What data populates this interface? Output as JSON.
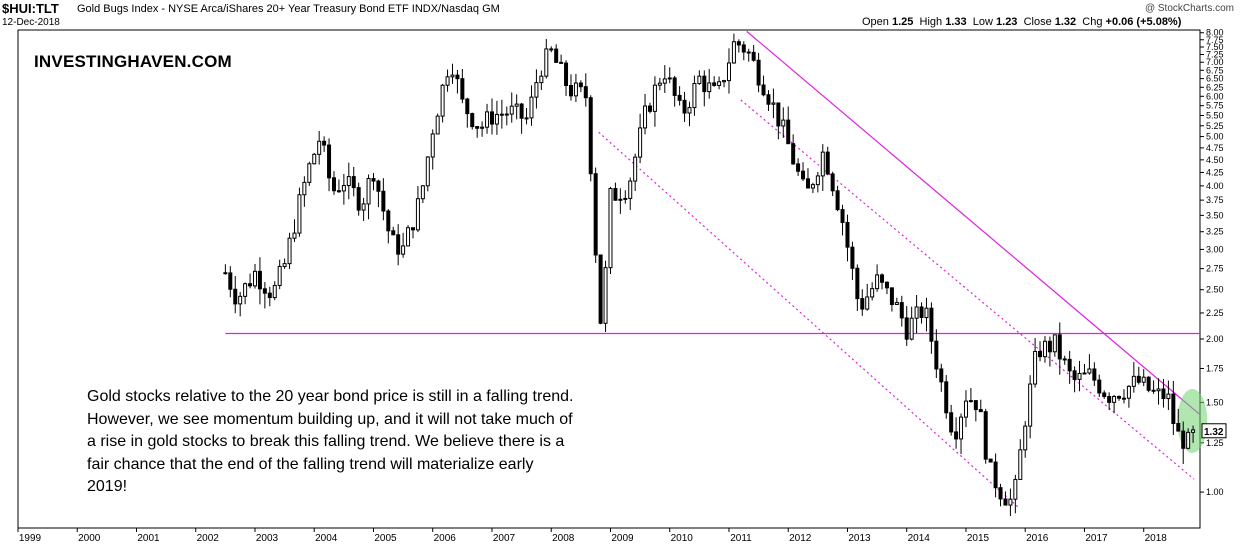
{
  "header": {
    "symbol": "$HUI:TLT",
    "description": "Gold Bugs Index - NYSE Arca/iShares 20+ Year Treasury Bond ETF  INDX/Nasdaq GM",
    "date": "12-Dec-2018",
    "credit": "@ StockCharts.com",
    "open_label": "Open",
    "open": "1.25",
    "high_label": "High",
    "high": "1.33",
    "low_label": "Low",
    "low": "1.23",
    "close_label": "Close",
    "close": "1.32",
    "chg_label": "Chg",
    "chg": "+0.06 (+5.08%)"
  },
  "watermark": "INVESTINGHAVEN.COM",
  "annotation": "Gold stocks relative to the 20 year bond price is still in a falling trend. However, we see momentum building up, and it will not take much of a rise in gold stocks to break this falling trend. We believe there is a fair chance that the end of the falling trend will materialize early 2019!",
  "colors": {
    "trendline": "#e020e0",
    "highlight": "#6fd36f",
    "up": "#ffffff",
    "down": "#000000"
  },
  "chart_data": {
    "type": "candlestick",
    "y_scale": "log",
    "ylim": [
      0.85,
      8.1
    ],
    "xlim": [
      1999.0,
      2018.95
    ],
    "x_ticks": [
      "1999",
      "2000",
      "2001",
      "2002",
      "2003",
      "2004",
      "2005",
      "2006",
      "2007",
      "2008",
      "2009",
      "2010",
      "2011",
      "2012",
      "2013",
      "2014",
      "2015",
      "2016",
      "2017",
      "2018"
    ],
    "y_ticks": [
      "8.00",
      "7.75",
      "7.50",
      "7.25",
      "7.00",
      "6.75",
      "6.50",
      "6.25",
      "6.00",
      "5.75",
      "5.50",
      "5.25",
      "5.00",
      "4.75",
      "4.50",
      "4.25",
      "4.00",
      "3.75",
      "3.50",
      "3.25",
      "3.00",
      "2.75",
      "2.50",
      "2.25",
      "2.00",
      "1.75",
      "1.50",
      "1.25",
      "1.00"
    ],
    "last_value": "1.32",
    "anchors": [
      [
        2002.5,
        2.7
      ],
      [
        2002.7,
        2.4
      ],
      [
        2003.0,
        2.7
      ],
      [
        2003.3,
        2.45
      ],
      [
        2003.5,
        2.8
      ],
      [
        2003.75,
        3.7
      ],
      [
        2003.9,
        4.3
      ],
      [
        2004.1,
        5.0
      ],
      [
        2004.3,
        3.9
      ],
      [
        2004.5,
        4.1
      ],
      [
        2004.8,
        3.7
      ],
      [
        2005.0,
        4.3
      ],
      [
        2005.3,
        3.1
      ],
      [
        2005.5,
        3.0
      ],
      [
        2005.8,
        3.8
      ],
      [
        2006.0,
        5.2
      ],
      [
        2006.3,
        7.2
      ],
      [
        2006.5,
        5.8
      ],
      [
        2006.8,
        5.2
      ],
      [
        2007.0,
        5.5
      ],
      [
        2007.3,
        5.6
      ],
      [
        2007.6,
        5.4
      ],
      [
        2007.8,
        6.8
      ],
      [
        2008.0,
        7.3
      ],
      [
        2008.3,
        6.2
      ],
      [
        2008.6,
        6.0
      ],
      [
        2008.75,
        3.0
      ],
      [
        2008.85,
        2.05
      ],
      [
        2009.0,
        3.8
      ],
      [
        2009.3,
        4.0
      ],
      [
        2009.6,
        5.6
      ],
      [
        2009.9,
        6.8
      ],
      [
        2010.2,
        5.5
      ],
      [
        2010.5,
        6.5
      ],
      [
        2010.8,
        6.0
      ],
      [
        2011.1,
        7.7
      ],
      [
        2011.3,
        7.4
      ],
      [
        2011.6,
        6.3
      ],
      [
        2011.9,
        5.2
      ],
      [
        2012.3,
        3.8
      ],
      [
        2012.6,
        4.7
      ],
      [
        2012.9,
        3.5
      ],
      [
        2013.2,
        2.3
      ],
      [
        2013.5,
        2.6
      ],
      [
        2013.8,
        2.35
      ],
      [
        2014.0,
        2.1
      ],
      [
        2014.3,
        2.3
      ],
      [
        2014.6,
        1.6
      ],
      [
        2014.8,
        1.3
      ],
      [
        2015.0,
        1.55
      ],
      [
        2015.2,
        1.5
      ],
      [
        2015.4,
        1.1
      ],
      [
        2015.6,
        1.0
      ],
      [
        2015.8,
        0.95
      ],
      [
        2016.0,
        1.4
      ],
      [
        2016.2,
        1.9
      ],
      [
        2016.5,
        1.95
      ],
      [
        2016.8,
        1.65
      ],
      [
        2017.1,
        1.7
      ],
      [
        2017.4,
        1.55
      ],
      [
        2017.7,
        1.6
      ],
      [
        2017.9,
        1.65
      ],
      [
        2018.2,
        1.55
      ],
      [
        2018.4,
        1.55
      ],
      [
        2018.55,
        1.3
      ],
      [
        2018.75,
        1.25
      ],
      [
        2018.9,
        1.32
      ]
    ],
    "trendlines": [
      {
        "kind": "support-horizontal",
        "x": [
          2002.5,
          2018.95
        ],
        "y": [
          2.05,
          2.05
        ]
      },
      {
        "kind": "falling-resistance",
        "x": [
          2011.3,
          2018.95
        ],
        "y": [
          8.05,
          1.42
        ]
      },
      {
        "kind": "channel-upper-dotted",
        "x": [
          2011.2,
          2018.85
        ],
        "y": [
          5.9,
          1.06
        ]
      },
      {
        "kind": "channel-lower-dotted",
        "x": [
          2008.8,
          2015.9
        ],
        "y": [
          5.1,
          0.93
        ]
      }
    ],
    "highlight": {
      "x": 2018.82,
      "y": 1.38,
      "label": ""
    }
  }
}
